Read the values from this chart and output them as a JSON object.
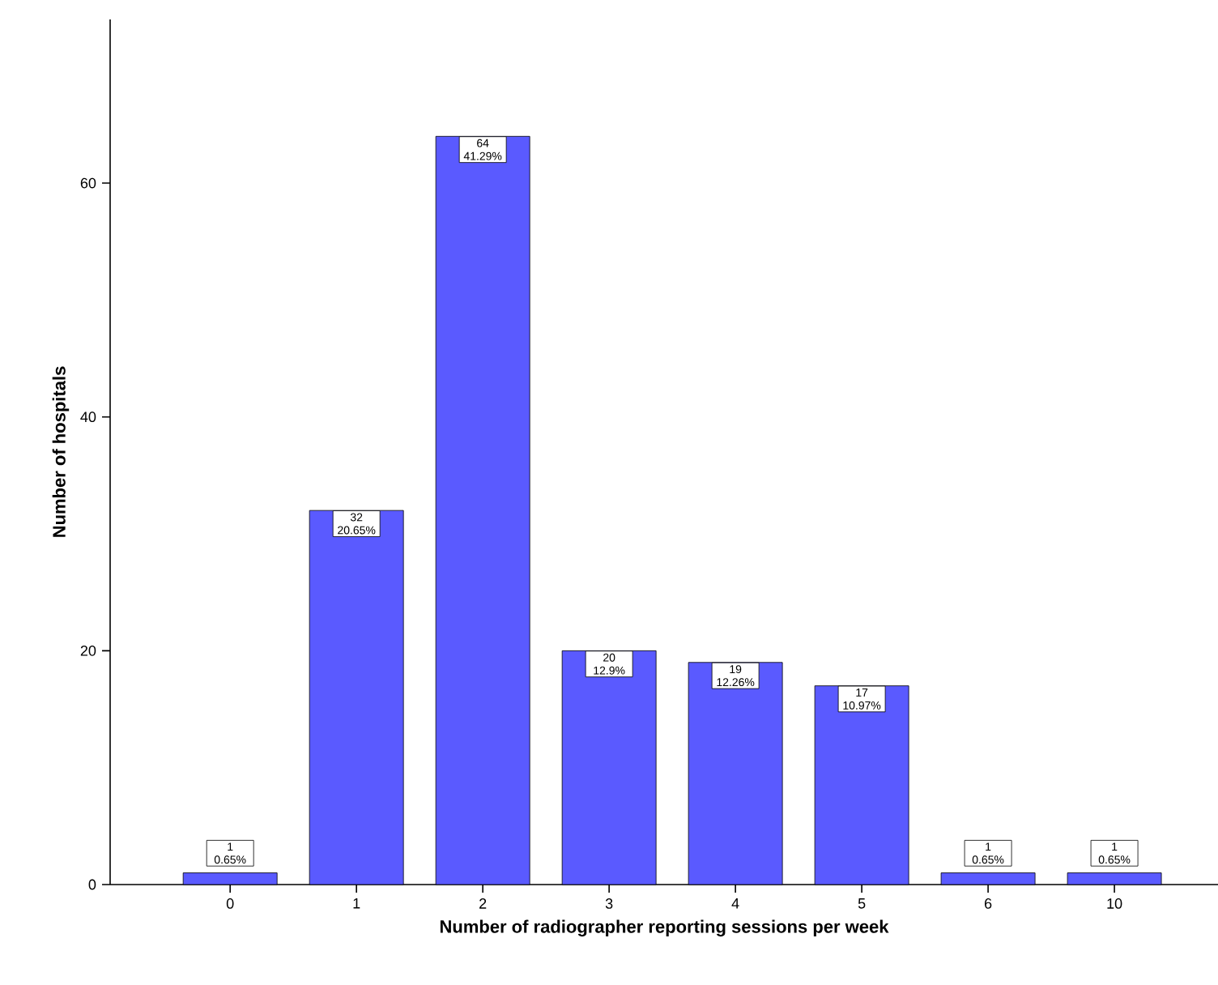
{
  "chart_data": {
    "type": "bar",
    "xlabel": "Number of radiographer reporting sessions per week",
    "ylabel": "Number of hospitals",
    "categories": [
      "0",
      "1",
      "2",
      "3",
      "4",
      "5",
      "6",
      "10"
    ],
    "values": [
      1,
      32,
      64,
      20,
      19,
      17,
      1,
      1
    ],
    "value_labels": [
      "1 0.65%",
      "32 20.65%",
      "64 41.29%",
      "20 12.9%",
      "19 12.26%",
      "17 10.97%",
      "1 0.65%",
      "1 0.65%"
    ],
    "color": "#5a5aff",
    "ylim": [
      0,
      74
    ],
    "yticks": [
      0,
      20,
      40,
      60
    ],
    "grid": false
  }
}
